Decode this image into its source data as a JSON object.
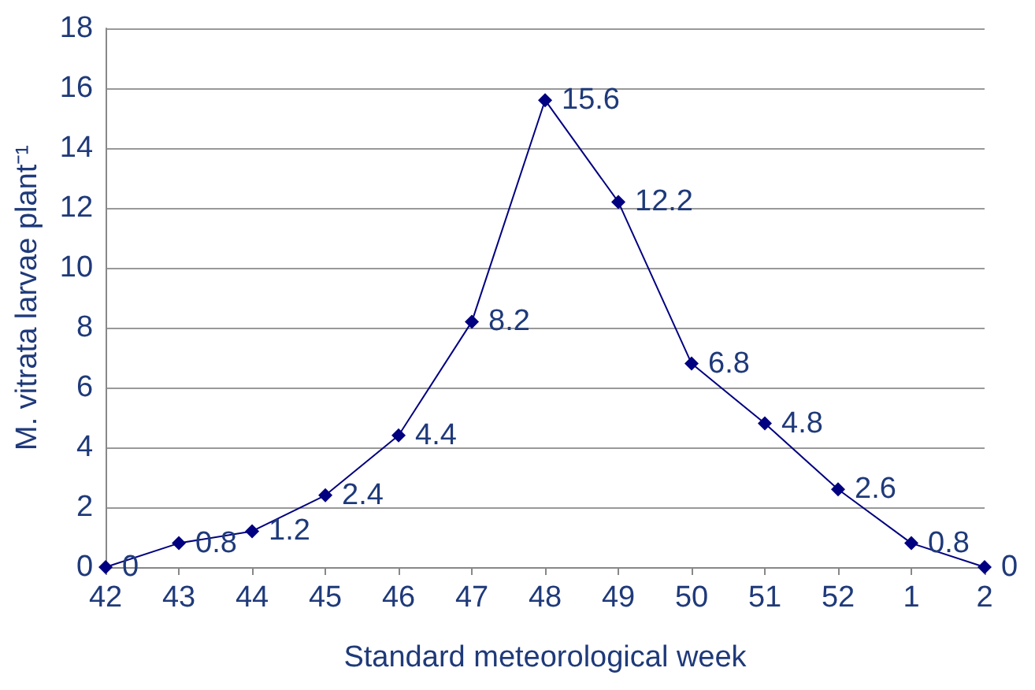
{
  "chart_data": {
    "type": "line",
    "xlabel": "Standard meteorological week",
    "ylabel": "M. vitrata larvae plant⁻¹",
    "categories": [
      "42",
      "43",
      "44",
      "45",
      "46",
      "47",
      "48",
      "49",
      "50",
      "51",
      "52",
      "1",
      "2"
    ],
    "series": [
      {
        "color": "#000080",
        "values": [
          0,
          0.8,
          1.2,
          2.4,
          4.4,
          8.2,
          15.6,
          12.2,
          6.8,
          4.8,
          2.6,
          0.8,
          0
        ]
      }
    ],
    "ylim": [
      0,
      18
    ],
    "yticks": [
      0,
      2,
      4,
      6,
      8,
      10,
      12,
      14,
      16,
      18
    ],
    "grid": "y",
    "marker": "diamond",
    "line_style": "solid",
    "data_labels": true
  }
}
